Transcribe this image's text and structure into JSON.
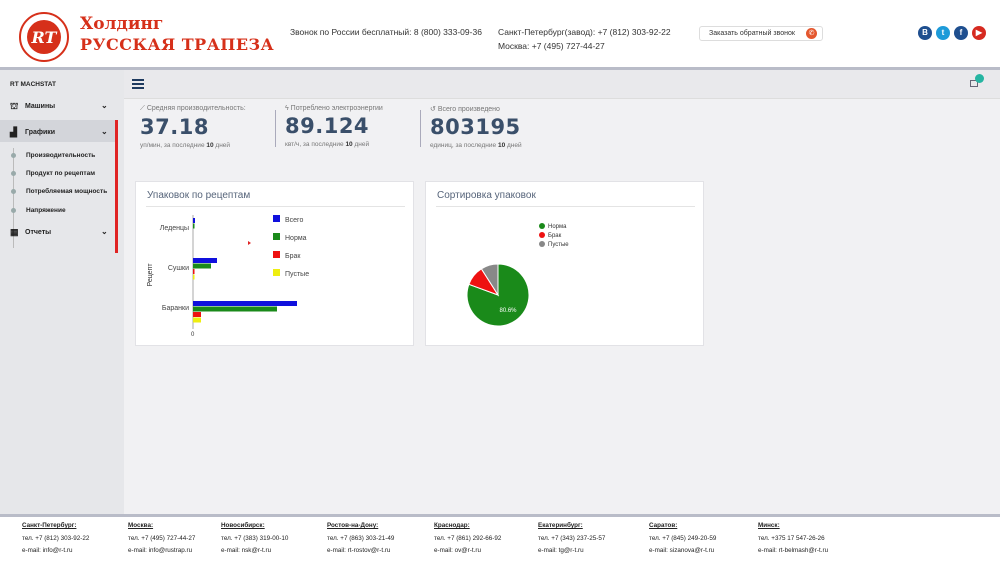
{
  "header": {
    "brand_line1": "Холдинг",
    "brand_line2": "РУССКАЯ ТРАПЕЗА",
    "free_call": "Звонок по России бесплатный: 8 (800) 333-09-36",
    "spb_phone": "Санкт-Петербург(завод): +7 (812) 303-92-22",
    "msk_phone": "Москва: +7 (495) 727-44-27",
    "callback_label": "Заказать обратный звонок",
    "socials": [
      {
        "name": "vk",
        "glyph": "В",
        "color": "#1f4f8f"
      },
      {
        "name": "twitter",
        "glyph": "t",
        "color": "#1d9bd9"
      },
      {
        "name": "facebook",
        "glyph": "f",
        "color": "#1f4f8f"
      },
      {
        "name": "youtube",
        "glyph": "▶",
        "color": "#d62a20"
      }
    ]
  },
  "sidebar": {
    "title": "RT MACHSTAT",
    "items": [
      {
        "label": "Машины",
        "icon": "sitemap-icon"
      },
      {
        "label": "Графики",
        "icon": "bar-chart-icon"
      },
      {
        "label": "Отчеты",
        "icon": "table-icon"
      }
    ],
    "sub_items": [
      "Производительность",
      "Продукт по рецептам",
      "Потребляемая мощность",
      "Напряжение"
    ]
  },
  "stats": [
    {
      "label": "Средняя производительность:",
      "value": "37.18",
      "unit": "уп/мин, за последние",
      "days": "10",
      "days_word": "дней",
      "icon": "line-chart-icon"
    },
    {
      "label": "Потреблено электроэнергии",
      "value": "89.124",
      "unit": "квт/ч, за последние",
      "days": "10",
      "days_word": "дней",
      "icon": "bolt-icon"
    },
    {
      "label": "Всего произведено",
      "value": "803195",
      "unit": "единиц, за последние",
      "days": "10",
      "days_word": "дней",
      "icon": "history-icon"
    }
  ],
  "panels": {
    "recipes_title": "Упаковок по рецептам",
    "sort_title": "Сортировка упаковок"
  },
  "chart_data": [
    {
      "type": "bar",
      "orientation": "horizontal",
      "title": "Упаковок по рецептам",
      "ylabel": "Рецепт",
      "xlabel": "",
      "x_tick": "0",
      "categories": [
        "Леденцы",
        "Сушки",
        "Баранки"
      ],
      "series": [
        {
          "name": "Всего",
          "color": "#1010dd",
          "values": [
            1,
            12,
            52
          ]
        },
        {
          "name": "Норма",
          "color": "#1a8a1a",
          "values": [
            0.5,
            9,
            42
          ]
        },
        {
          "name": "Брак",
          "color": "#ee1111",
          "values": [
            0,
            0.5,
            4
          ]
        },
        {
          "name": "Пустые",
          "color": "#eeee11",
          "values": [
            0,
            0.5,
            4
          ]
        }
      ]
    },
    {
      "type": "pie",
      "title": "Сортировка упаковок",
      "labels": [
        "Норма",
        "Брак",
        "Пустые"
      ],
      "values": [
        80.6,
        10.4,
        9.0
      ],
      "colors": [
        "#1a8a1a",
        "#ee1111",
        "#888888"
      ],
      "slice_label": "80.6%"
    }
  ],
  "footer": [
    {
      "city": "Санкт-Петербург:",
      "phone": "тел. +7 (812) 303-92-22",
      "email": "e-mail: info@r-t.ru"
    },
    {
      "city": "Москва:",
      "phone": "тел. +7 (495) 727-44-27",
      "email": "e-mail: info@rustrap.ru"
    },
    {
      "city": "Новосибирск:",
      "phone": "тел. +7 (383) 319-00-10",
      "email": "e-mail: nsk@r-t.ru"
    },
    {
      "city": "Ростов-на-Дону:",
      "phone": "тел. +7 (863) 303-21-49",
      "email": "e-mail: rt-rostov@r-t.ru"
    },
    {
      "city": "Краснодар:",
      "phone": "тел. +7 (861) 292-66-92",
      "email": "e-mail: ov@r-t.ru"
    },
    {
      "city": "Екатеринбург:",
      "phone": "тел. +7 (343) 237-25-57",
      "email": "e-mail: tg@r-t.ru"
    },
    {
      "city": "Саратов:",
      "phone": "тел. +7 (845) 249-20-59",
      "email": "e-mail: sizanova@r-t.ru"
    },
    {
      "city": "Минск:",
      "phone": "тел. +375 17 547-26-26",
      "email": "e-mail: rt-belmash@r-t.ru"
    }
  ]
}
